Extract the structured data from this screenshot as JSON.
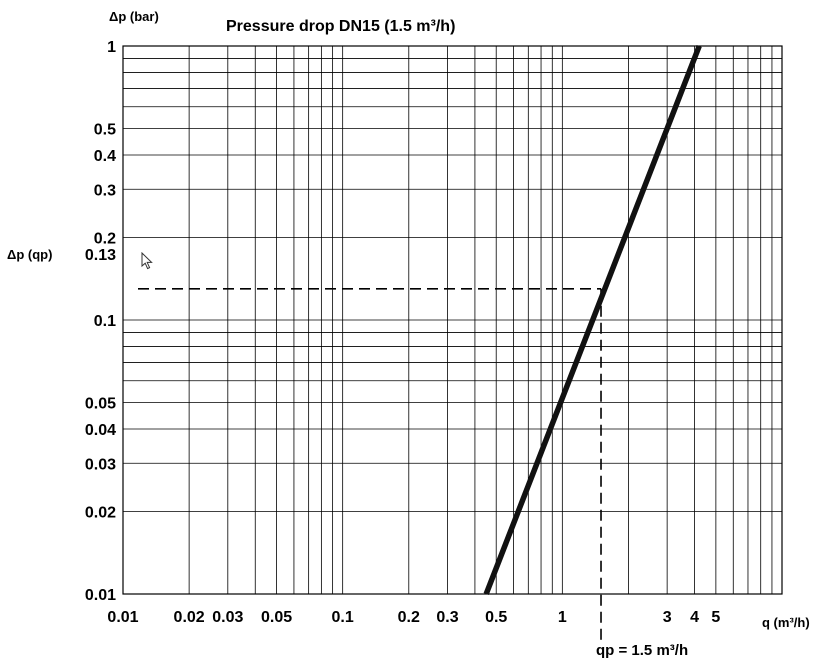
{
  "chart_data": {
    "type": "line",
    "title": "Pressure drop DN15 (1.5 m³/h)",
    "ylabel": "Δp (bar)",
    "xlabel": "q (m³/h)",
    "xscale": "log",
    "yscale": "log",
    "xlim": [
      0.01,
      10
    ],
    "ylim": [
      0.01,
      1
    ],
    "grid": true,
    "x_ticks": [
      {
        "value": 0.01,
        "label": "0.01"
      },
      {
        "value": 0.02,
        "label": "0.02"
      },
      {
        "value": 0.03,
        "label": "0.03"
      },
      {
        "value": 0.05,
        "label": "0.05"
      },
      {
        "value": 0.1,
        "label": "0.1"
      },
      {
        "value": 0.2,
        "label": "0.2"
      },
      {
        "value": 0.3,
        "label": "0.3"
      },
      {
        "value": 0.5,
        "label": "0.5"
      },
      {
        "value": 1,
        "label": "1"
      },
      {
        "value": 3,
        "label": "3"
      },
      {
        "value": 4,
        "label": "4"
      },
      {
        "value": 5,
        "label": "5"
      }
    ],
    "y_ticks": [
      {
        "value": 1,
        "label": "1"
      },
      {
        "value": 0.5,
        "label": "0.5"
      },
      {
        "value": 0.4,
        "label": "0.4"
      },
      {
        "value": 0.3,
        "label": "0.3"
      },
      {
        "value": 0.2,
        "label": "0.2"
      },
      {
        "value": 0.1,
        "label": "0.1"
      },
      {
        "value": 0.05,
        "label": "0.05"
      },
      {
        "value": 0.04,
        "label": "0.04"
      },
      {
        "value": 0.03,
        "label": "0.03"
      },
      {
        "value": 0.02,
        "label": "0.02"
      },
      {
        "value": 0.01,
        "label": "0.01"
      }
    ],
    "series": [
      {
        "x": [
          0.45,
          4.2
        ],
        "y": [
          0.01,
          1
        ]
      }
    ],
    "annotations": {
      "dp_qp_label": "Δp (qp)",
      "dp_qp_value": 0.13,
      "dp_qp_tick_label": "0.13",
      "qp_label": "qp = 1.5 m³/h",
      "qp_value": 1.5
    }
  }
}
